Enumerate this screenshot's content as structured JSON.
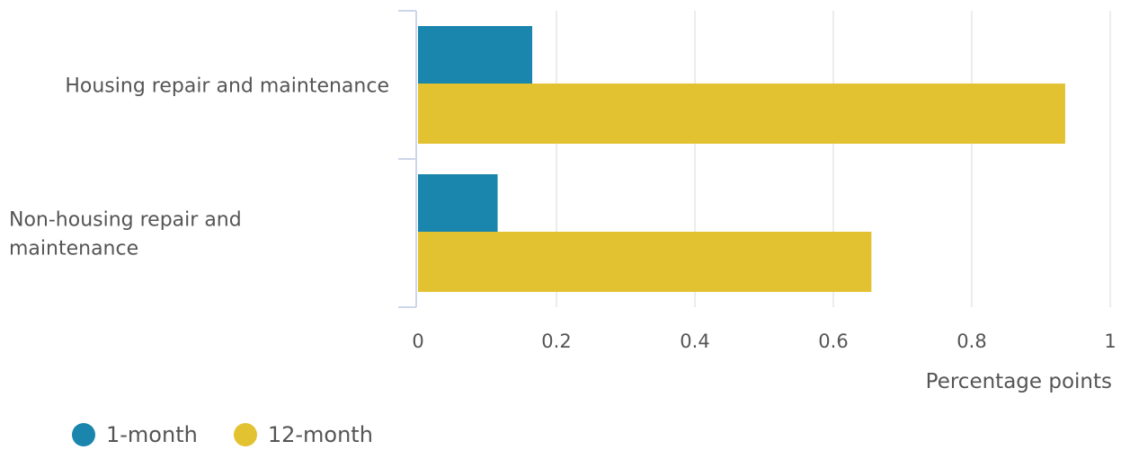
{
  "chart_data": {
    "type": "bar",
    "orientation": "horizontal",
    "categories": [
      [
        "Housing repair and maintenance"
      ],
      [
        "Non-housing repair and",
        "maintenance"
      ]
    ],
    "series": [
      {
        "name": "1-month",
        "color": "#1a85ad",
        "values": [
          0.165,
          0.115
        ]
      },
      {
        "name": "12-month",
        "color": "#e3c232",
        "values": [
          0.935,
          0.655
        ]
      }
    ],
    "xlim": [
      0,
      1
    ],
    "xticks": [
      "0",
      "0.2",
      "0.4",
      "0.6",
      "0.8",
      "1"
    ],
    "xlabel": "Percentage points",
    "grid": true,
    "legend": "bottom-left"
  }
}
